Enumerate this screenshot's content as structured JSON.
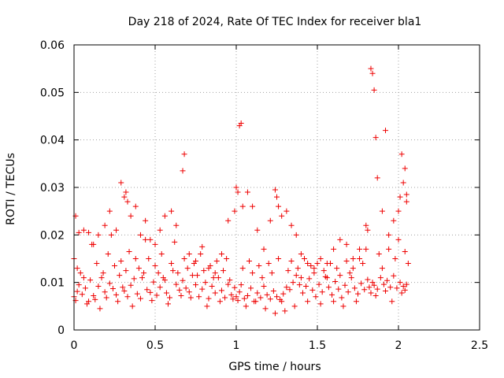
{
  "chart_data": {
    "type": "scatter",
    "title": "Day 218 of 2024, Rate Of TEC Index for receiver bla1",
    "xlabel": "GPS time / hours",
    "ylabel": "ROTI / TECUs",
    "xlim": [
      0,
      2.5
    ],
    "ylim": [
      0,
      0.06
    ],
    "x_ticks": [
      0,
      0.5,
      1,
      1.5,
      2,
      2.5
    ],
    "x_tick_labels": [
      "0",
      "0.5",
      "1",
      "1.5",
      "2",
      "2.5"
    ],
    "y_ticks": [
      0,
      0.01,
      0.02,
      0.03,
      0.04,
      0.05,
      0.06
    ],
    "y_tick_labels": [
      "0",
      "0.01",
      "0.02",
      "0.03",
      "0.04",
      "0.05",
      "0.06"
    ],
    "grid": true,
    "marker": "plus",
    "color": "#ee0000",
    "series": [
      {
        "x": [
          0.0,
          0.01,
          0.02,
          0.03,
          0.05,
          0.07,
          0.09,
          0.1,
          0.12,
          0.13,
          0.15,
          0.17,
          0.19,
          0.2,
          0.22,
          0.24,
          0.26,
          0.28,
          0.3,
          0.31,
          0.33,
          0.35,
          0.37,
          0.39,
          0.41,
          0.43,
          0.45,
          0.47,
          0.49,
          0.51,
          0.53,
          0.55,
          0.57,
          0.59,
          0.61,
          0.63,
          0.65,
          0.66,
          0.67,
          0.69,
          0.71,
          0.73,
          0.75,
          0.77,
          0.79,
          0.81,
          0.83,
          0.85,
          0.87,
          0.89,
          0.91,
          0.93,
          0.95,
          0.97,
          0.99,
          1.0,
          1.01,
          1.02,
          1.03,
          1.05,
          1.07,
          1.09,
          1.11,
          1.13,
          1.15,
          1.17,
          1.19,
          1.21,
          1.23,
          1.25,
          1.27,
          1.29,
          1.31,
          1.33,
          1.35,
          1.37,
          1.39,
          1.41,
          1.43,
          1.45,
          1.47,
          1.49,
          1.51,
          1.53,
          1.55,
          1.57,
          1.59,
          1.61,
          1.63,
          1.65,
          1.67,
          1.69,
          1.71,
          1.73,
          1.75,
          1.77,
          1.79,
          1.81,
          1.82,
          1.83,
          1.84,
          1.85,
          1.86,
          1.87,
          1.89,
          1.91,
          1.92,
          1.93,
          1.95,
          1.97,
          1.99,
          2.01,
          2.02,
          2.03,
          2.04,
          2.05,
          0.0,
          0.02,
          0.04,
          0.06,
          0.08,
          0.11,
          0.14,
          0.16,
          0.18,
          0.21,
          0.23,
          0.25,
          0.27,
          0.29,
          0.32,
          0.34,
          0.36,
          0.38,
          0.4,
          0.42,
          0.44,
          0.46,
          0.48,
          0.5,
          0.52,
          0.54,
          0.56,
          0.58,
          0.6,
          0.62,
          0.64,
          0.68,
          0.7,
          0.72,
          0.74,
          0.76,
          0.78,
          0.8,
          0.82,
          0.84,
          0.86,
          0.88,
          0.9,
          0.92,
          0.94,
          0.96,
          0.98,
          1.04,
          1.06,
          1.08,
          1.1,
          1.12,
          1.14,
          1.16,
          1.18,
          1.2,
          1.22,
          1.24,
          1.26,
          1.28,
          1.3,
          1.32,
          1.34,
          1.36,
          1.38,
          1.4,
          1.42,
          1.44,
          1.46,
          1.48,
          1.5,
          1.52,
          1.54,
          1.56,
          1.58,
          1.6,
          1.62,
          1.64,
          1.66,
          1.68,
          1.7,
          1.72,
          1.74,
          1.76,
          1.78,
          1.8,
          1.88,
          1.9,
          1.94,
          1.96,
          1.98,
          2.0,
          2.04,
          2.06,
          0.01,
          0.03,
          0.06,
          0.09,
          0.12,
          0.15,
          0.19,
          0.22,
          0.26,
          0.29,
          0.31,
          0.32,
          0.33,
          0.35,
          0.38,
          0.41,
          0.44,
          0.47,
          0.5,
          0.53,
          0.56,
          0.6,
          0.63,
          0.67,
          0.68,
          0.71,
          0.75,
          0.79,
          0.83,
          0.87,
          0.91,
          0.95,
          0.99,
          1.0,
          1.01,
          1.02,
          1.03,
          1.04,
          1.07,
          1.1,
          1.13,
          1.17,
          1.21,
          1.24,
          1.25,
          1.26,
          1.28,
          1.31,
          1.34,
          1.37,
          1.4,
          1.44,
          1.48,
          1.52,
          1.56,
          1.6,
          1.64,
          1.68,
          1.72,
          1.76,
          1.8,
          1.81,
          1.83,
          1.84,
          1.85,
          1.86,
          1.87,
          1.9,
          1.92,
          1.94,
          1.97,
          2.0,
          2.01,
          2.02,
          2.03,
          2.04,
          2.05,
          2.05
        ],
        "y": [
          0.007,
          0.0062,
          0.0081,
          0.0095,
          0.0075,
          0.0088,
          0.006,
          0.0105,
          0.0072,
          0.0064,
          0.0092,
          0.011,
          0.008,
          0.0068,
          0.0098,
          0.0087,
          0.0074,
          0.0115,
          0.009,
          0.0082,
          0.007,
          0.0094,
          0.0108,
          0.0076,
          0.0066,
          0.012,
          0.0085,
          0.0079,
          0.0101,
          0.0073,
          0.009,
          0.011,
          0.0078,
          0.0068,
          0.0125,
          0.0096,
          0.0084,
          0.0072,
          0.0104,
          0.0088,
          0.008,
          0.0115,
          0.0095,
          0.007,
          0.0086,
          0.01,
          0.0066,
          0.0092,
          0.0078,
          0.011,
          0.0083,
          0.0068,
          0.0096,
          0.0074,
          0.0089,
          0.007,
          0.0062,
          0.008,
          0.0095,
          0.0066,
          0.0072,
          0.0088,
          0.006,
          0.0078,
          0.0068,
          0.0092,
          0.0074,
          0.0065,
          0.0082,
          0.007,
          0.0064,
          0.0076,
          0.009,
          0.0085,
          0.01,
          0.0115,
          0.0095,
          0.0078,
          0.0092,
          0.0108,
          0.0084,
          0.007,
          0.0096,
          0.008,
          0.0112,
          0.009,
          0.0074,
          0.0102,
          0.0086,
          0.0068,
          0.0094,
          0.008,
          0.011,
          0.0088,
          0.0076,
          0.0098,
          0.0085,
          0.0106,
          0.009,
          0.0078,
          0.01,
          0.0094,
          0.0072,
          0.0086,
          0.011,
          0.0096,
          0.0082,
          0.0104,
          0.009,
          0.0114,
          0.0088,
          0.01,
          0.0078,
          0.0092,
          0.0084,
          0.0096,
          0.015,
          0.013,
          0.012,
          0.011,
          0.0055,
          0.018,
          0.014,
          0.0045,
          0.012,
          0.016,
          0.02,
          0.0135,
          0.006,
          0.0145,
          0.0125,
          0.0165,
          0.005,
          0.015,
          0.013,
          0.011,
          0.019,
          0.015,
          0.0062,
          0.0135,
          0.012,
          0.016,
          0.0105,
          0.0055,
          0.014,
          0.0185,
          0.012,
          0.015,
          0.013,
          0.0068,
          0.014,
          0.0115,
          0.016,
          0.0125,
          0.005,
          0.0135,
          0.011,
          0.0145,
          0.006,
          0.0125,
          0.015,
          0.0105,
          0.0065,
          0.013,
          0.005,
          0.0145,
          0.012,
          0.006,
          0.0135,
          0.011,
          0.0045,
          0.014,
          0.012,
          0.0035,
          0.015,
          0.006,
          0.004,
          0.0125,
          0.0145,
          0.005,
          0.013,
          0.011,
          0.015,
          0.006,
          0.0135,
          0.012,
          0.014,
          0.0055,
          0.0125,
          0.011,
          0.014,
          0.006,
          0.013,
          0.0115,
          0.005,
          0.0145,
          0.012,
          0.013,
          0.006,
          0.015,
          0.014,
          0.017,
          0.016,
          0.013,
          0.017,
          0.006,
          0.015,
          0.019,
          0.0165,
          0.014,
          0.024,
          0.0205,
          0.021,
          0.0205,
          0.018,
          0.02,
          0.022,
          0.025,
          0.021,
          0.031,
          0.028,
          0.029,
          0.027,
          0.024,
          0.026,
          0.02,
          0.023,
          0.019,
          0.018,
          0.021,
          0.024,
          0.025,
          0.022,
          0.0335,
          0.037,
          0.016,
          0.0145,
          0.0175,
          0.013,
          0.012,
          0.016,
          0.023,
          0.025,
          0.03,
          0.029,
          0.043,
          0.0435,
          0.026,
          0.029,
          0.026,
          0.021,
          0.017,
          0.023,
          0.0295,
          0.028,
          0.026,
          0.024,
          0.025,
          0.022,
          0.02,
          0.016,
          0.014,
          0.013,
          0.015,
          0.014,
          0.017,
          0.019,
          0.018,
          0.015,
          0.017,
          0.022,
          0.021,
          0.055,
          0.054,
          0.0505,
          0.0405,
          0.032,
          0.025,
          0.042,
          0.02,
          0.023,
          0.025,
          0.028,
          0.037,
          0.031,
          0.034,
          0.027,
          0.0285
        ]
      }
    ]
  }
}
